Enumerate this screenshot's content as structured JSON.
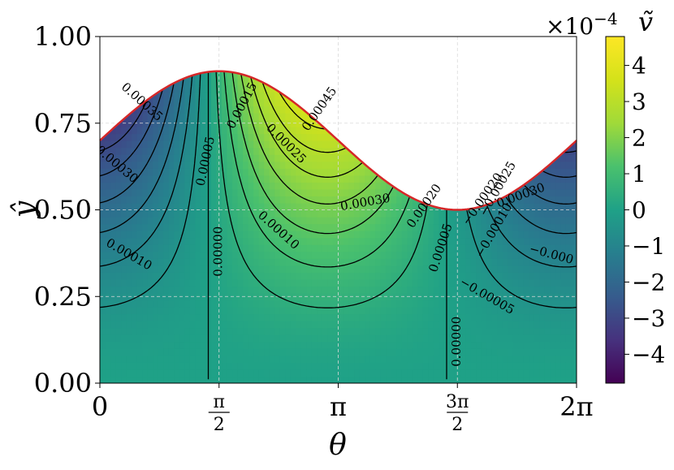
{
  "chart_data": {
    "type": "heatmap",
    "title": "",
    "xlabel": "θ",
    "ylabel": "ŷ",
    "colorbar_label": "ṽ",
    "colorbar_multiplier": "×10",
    "colorbar_exponent": "−4",
    "xlim": [
      0,
      6.2832
    ],
    "ylim": [
      0,
      1.0
    ],
    "x_ticks": [
      {
        "value": 0,
        "label": "0"
      },
      {
        "value": 1.5708,
        "num": "π",
        "den": "2"
      },
      {
        "value": 3.1416,
        "label": "π"
      },
      {
        "value": 4.7124,
        "num": "3π",
        "den": "2"
      },
      {
        "value": 6.2832,
        "label": "2π"
      }
    ],
    "y_ticks": [
      {
        "value": 0.0,
        "label": "0.00"
      },
      {
        "value": 0.25,
        "label": "0.25"
      },
      {
        "value": 0.5,
        "label": "0.50"
      },
      {
        "value": 0.75,
        "label": "0.75"
      },
      {
        "value": 1.0,
        "label": "1.00"
      }
    ],
    "colorbar_range": [
      -4.8,
      4.8
    ],
    "colorbar_ticks": [
      {
        "value": 4,
        "label": "4"
      },
      {
        "value": 3,
        "label": "3"
      },
      {
        "value": 2,
        "label": "2"
      },
      {
        "value": 1,
        "label": "1"
      },
      {
        "value": 0,
        "label": "0"
      },
      {
        "value": -1,
        "label": "−1"
      },
      {
        "value": -2,
        "label": "−2"
      },
      {
        "value": -3,
        "label": "−3"
      },
      {
        "value": -4,
        "label": "−4"
      }
    ],
    "top_boundary": {
      "formula": "0.7 + 0.2*sin(theta)",
      "color": "#d62728"
    },
    "colormap": "viridis",
    "grid": true,
    "contour_labels": [
      {
        "text": "0.00000",
        "x": 1.57,
        "y": 0.38,
        "angle": -90
      },
      {
        "text": "0.00000",
        "x": 4.71,
        "y": 0.12,
        "angle": -90
      },
      {
        "text": "0.00005",
        "x": 1.4,
        "y": 0.64,
        "angle": -78
      },
      {
        "text": "0.00005",
        "x": 4.5,
        "y": 0.39,
        "angle": -72
      },
      {
        "text": "0.00010",
        "x": 2.35,
        "y": 0.44,
        "angle": 42
      },
      {
        "text": "0.00010",
        "x": 0.38,
        "y": 0.37,
        "angle": 30
      },
      {
        "text": "0.00015",
        "x": 1.88,
        "y": 0.8,
        "angle": -62
      },
      {
        "text": "0.00025",
        "x": 2.45,
        "y": 0.69,
        "angle": 45
      },
      {
        "text": "0.00030",
        "x": 3.5,
        "y": 0.52,
        "angle": -10
      },
      {
        "text": "0.00030",
        "x": 0.22,
        "y": 0.63,
        "angle": 40
      },
      {
        "text": "0.00035",
        "x": 0.55,
        "y": 0.81,
        "angle": 42
      },
      {
        "text": "0.00020",
        "x": 4.28,
        "y": 0.51,
        "angle": -55
      },
      {
        "text": "0.00045",
        "x": 2.9,
        "y": 0.79,
        "angle": -55
      },
      {
        "text": "−0.00005",
        "x": 5.1,
        "y": 0.25,
        "angle": 30
      },
      {
        "text": "−0.00010",
        "x": 5.2,
        "y": 0.44,
        "angle": -60
      },
      {
        "text": "−0.00020",
        "x": 5.05,
        "y": 0.53,
        "angle": -55
      },
      {
        "text": "−0.00025",
        "x": 5.25,
        "y": 0.56,
        "angle": -60
      },
      {
        "text": "0.00030",
        "x": 5.55,
        "y": 0.54,
        "angle": -20
      },
      {
        "text": "−0.000",
        "x": 5.95,
        "y": 0.37,
        "angle": 15
      }
    ],
    "contour_levels": [
      -0.00035,
      -0.0003,
      -0.00025,
      -0.0002,
      -0.00015,
      -0.0001,
      -5e-05,
      0,
      5e-05,
      0.0001,
      0.00015,
      0.0002,
      0.00025,
      0.0003,
      0.00035,
      0.0004,
      0.00045
    ]
  }
}
